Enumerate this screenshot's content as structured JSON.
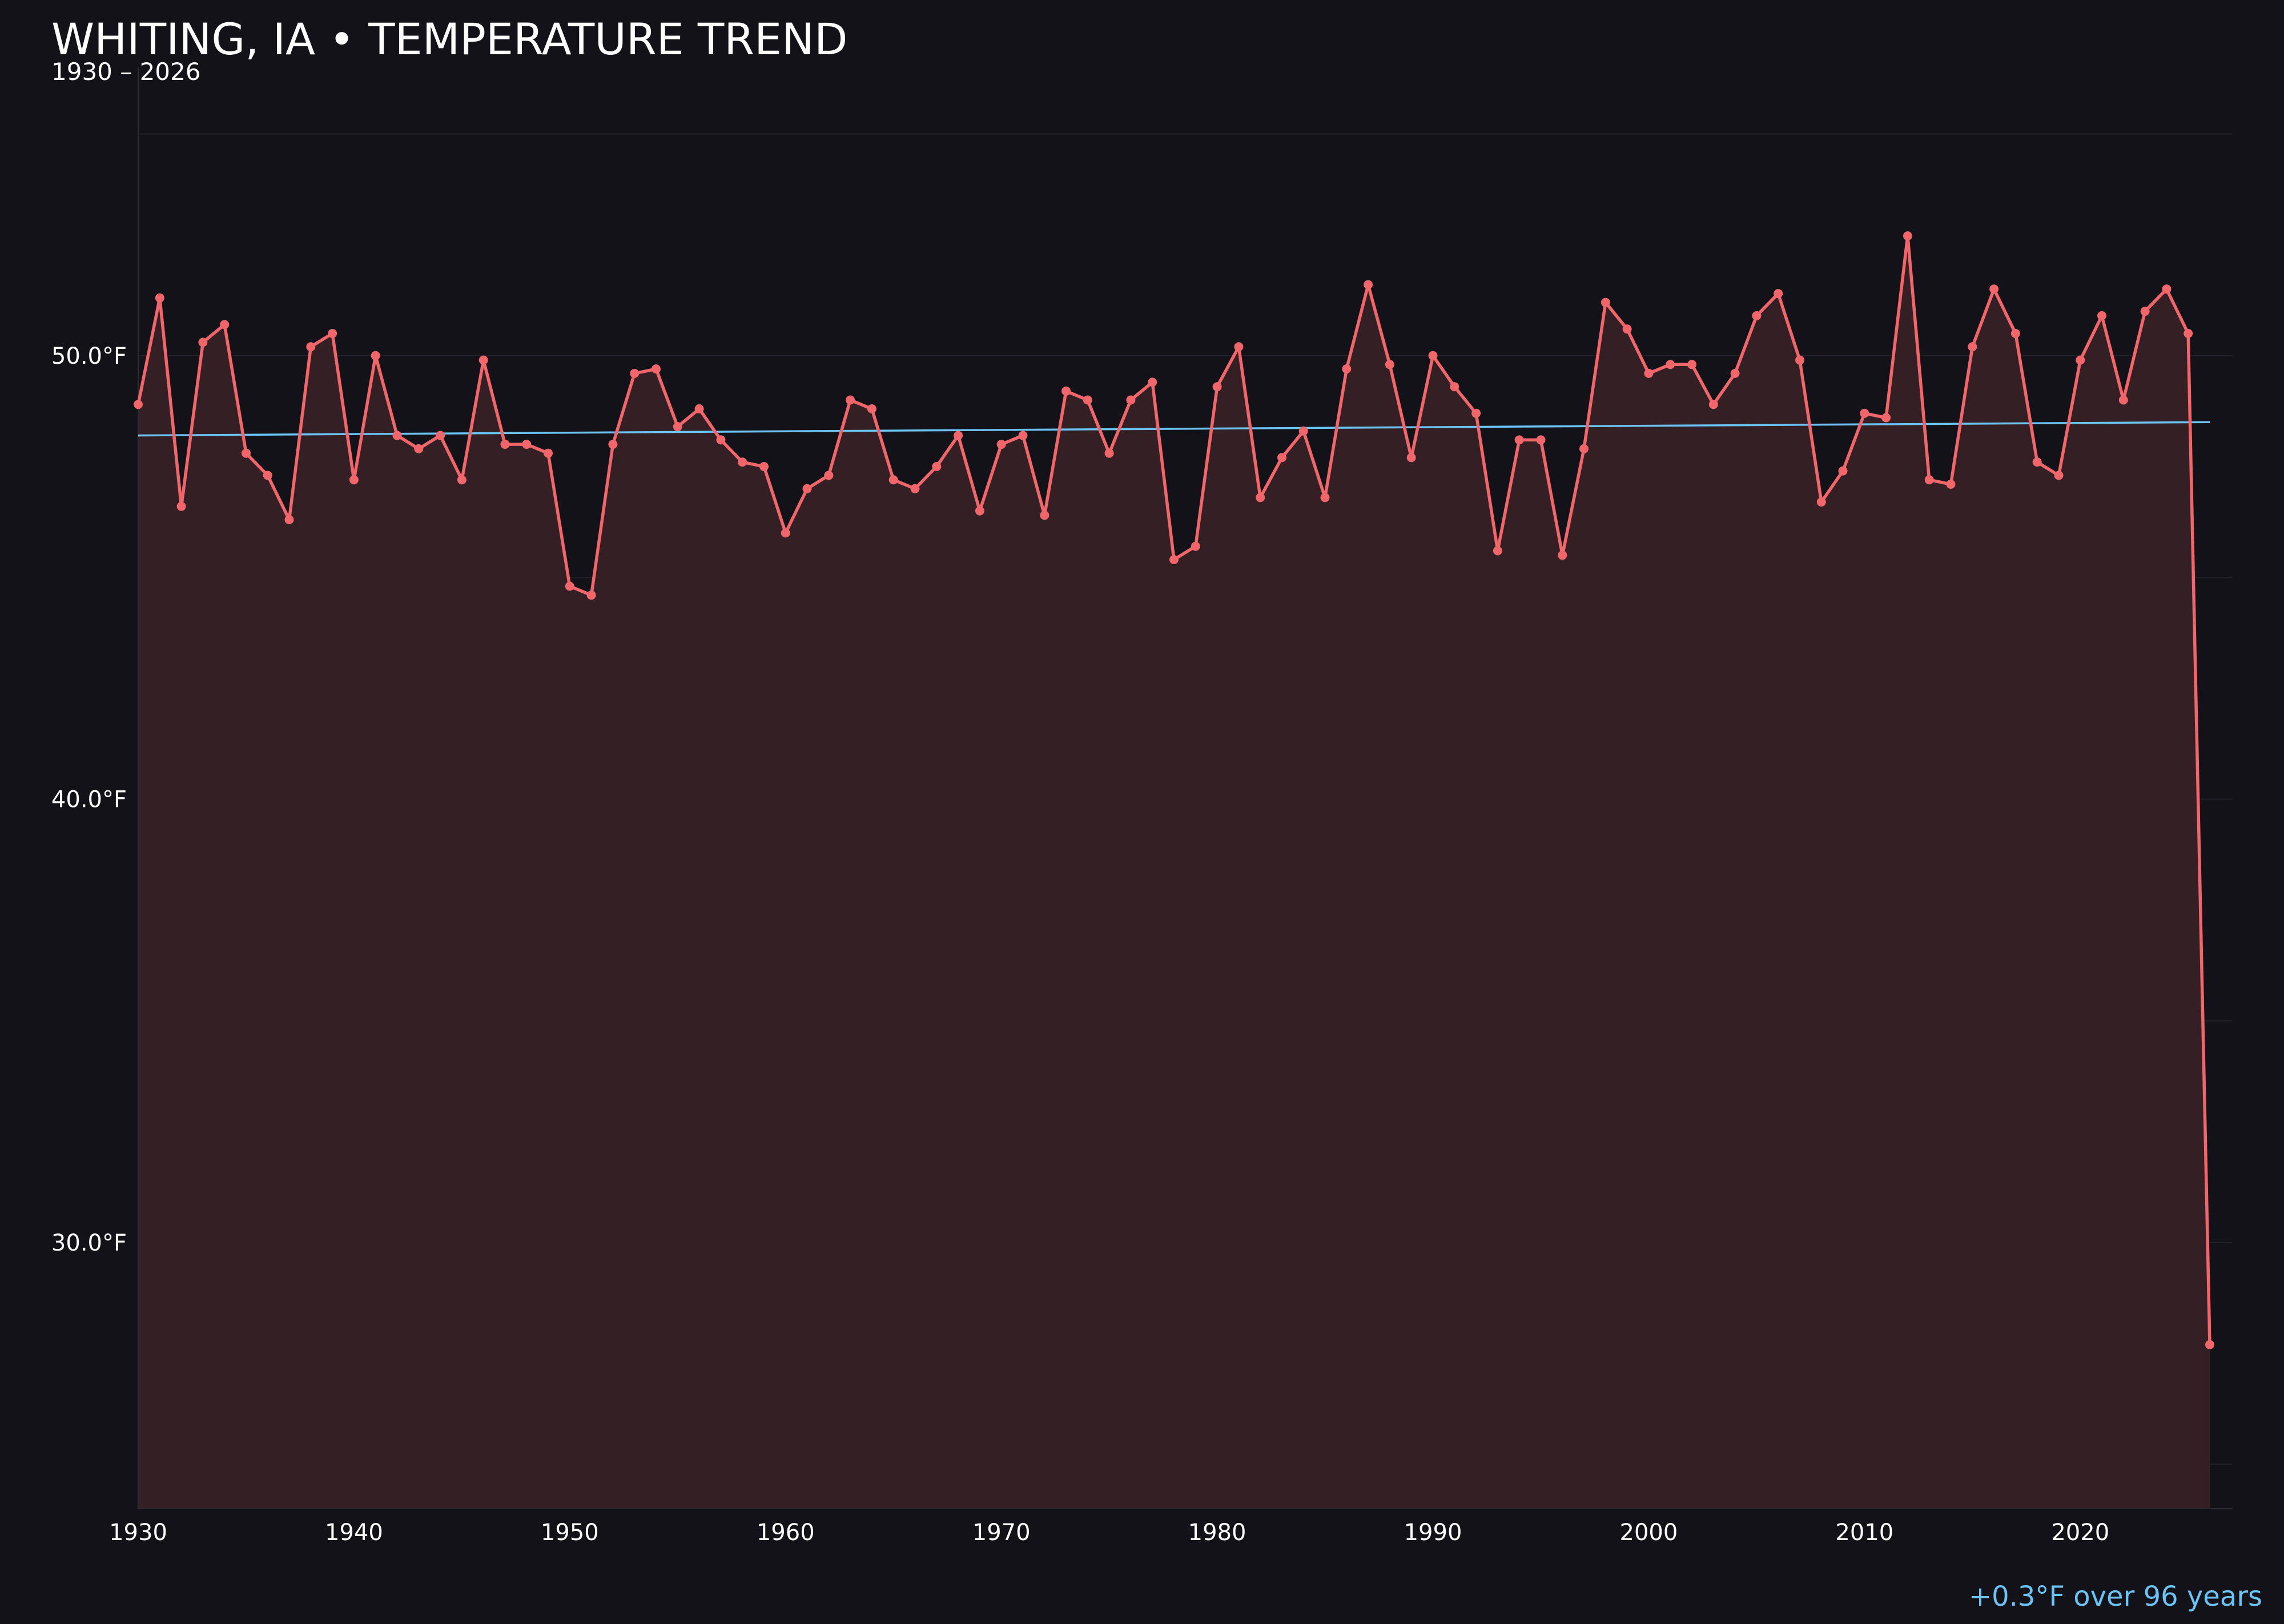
{
  "chart_data": {
    "type": "line",
    "title": "WHITING, IA • TEMPERATURE TREND",
    "subtitle": "1930 – 2026",
    "summary": "+0.3°F over 96 years",
    "xlim": [
      1930,
      2026
    ],
    "ylim": [
      24,
      56.5
    ],
    "x_ticks": [
      1930,
      1940,
      1950,
      1960,
      1970,
      1980,
      1990,
      2000,
      2010,
      2020
    ],
    "y_ticks": [
      {
        "value": 30,
        "label": "30.0°F"
      },
      {
        "value": 40,
        "label": "40.0°F"
      },
      {
        "value": 50,
        "label": "50.0°F"
      }
    ],
    "grid": true,
    "legend": "none",
    "colors": {
      "background": "#131219",
      "series": "#f0666b",
      "area": "#341f25",
      "trend": "#6cc3f5",
      "grid": "#22212a",
      "text": "#ffffff",
      "summary": "#6cc3f5"
    },
    "series": [
      {
        "x": [
          1930,
          1931,
          1932,
          1933,
          1934,
          1935,
          1936,
          1937,
          1938,
          1939,
          1940,
          1941,
          1942,
          1943,
          1944,
          1945,
          1946,
          1947,
          1948,
          1949,
          1950,
          1951,
          1952,
          1953,
          1954,
          1955,
          1956,
          1957,
          1958,
          1959,
          1960,
          1961,
          1962,
          1963,
          1964,
          1965,
          1966,
          1967,
          1968,
          1969,
          1970,
          1971,
          1972,
          1973,
          1974,
          1975,
          1976,
          1977,
          1978,
          1979,
          1980,
          1981,
          1982,
          1983,
          1984,
          1985,
          1986,
          1987,
          1988,
          1989,
          1990,
          1991,
          1992,
          1993,
          1994,
          1995,
          1996,
          1997,
          1998,
          1999,
          2000,
          2001,
          2002,
          2003,
          2004,
          2005,
          2006,
          2007,
          2008,
          2009,
          2010,
          2011,
          2012,
          2013,
          2014,
          2015,
          2016,
          2017,
          2018,
          2019,
          2020,
          2021,
          2022,
          2023,
          2024,
          2025,
          2026
        ],
        "values": [
          48.9,
          51.3,
          46.6,
          50.3,
          50.7,
          47.8,
          47.3,
          46.3,
          50.2,
          50.5,
          47.2,
          50.0,
          48.2,
          47.9,
          48.2,
          47.2,
          49.9,
          48.0,
          48.0,
          47.8,
          44.8,
          44.6,
          48.0,
          49.6,
          49.7,
          48.4,
          48.8,
          48.1,
          47.6,
          47.5,
          46.0,
          47.0,
          47.3,
          49.0,
          48.8,
          47.2,
          47.0,
          47.5,
          48.2,
          46.5,
          48.0,
          48.2,
          46.4,
          49.2,
          49.0,
          47.8,
          49.0,
          49.4,
          45.4,
          45.7,
          49.3,
          50.2,
          46.8,
          47.7,
          48.3,
          46.8,
          49.7,
          51.6,
          49.8,
          47.7,
          50.0,
          49.3,
          48.7,
          45.6,
          48.1,
          48.1,
          45.5,
          47.9,
          51.2,
          50.6,
          49.6,
          49.8,
          49.8,
          48.9,
          49.6,
          50.9,
          51.4,
          49.9,
          46.7,
          47.4,
          48.7,
          48.6,
          52.7,
          47.2,
          47.1,
          50.2,
          51.5,
          50.5,
          47.6,
          47.3,
          49.9,
          50.9,
          49.0,
          51.0,
          51.5,
          50.5,
          27.7
        ]
      }
    ],
    "trend": {
      "x": [
        1930,
        2026
      ],
      "values": [
        48.2,
        48.5
      ]
    }
  }
}
